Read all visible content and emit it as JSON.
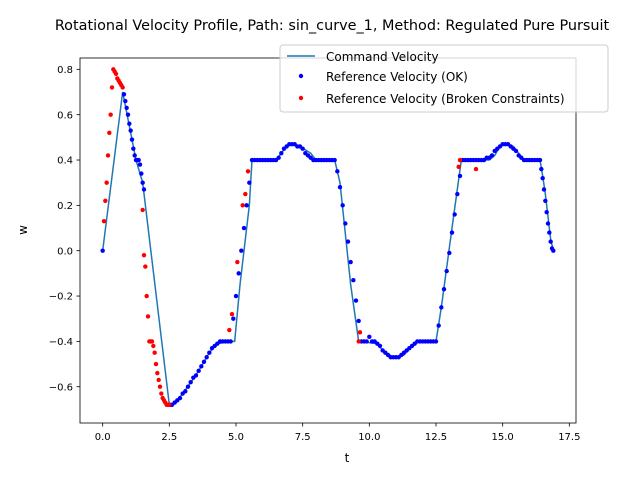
{
  "chart_data": {
    "type": "line",
    "title": "Rotational Velocity Profile, Path: sin_curve_1, Method: Regulated Pure Pursuit",
    "xlabel": "t",
    "ylabel": "w",
    "xlim": [
      -0.85,
      17.75
    ],
    "ylim": [
      -0.76,
      0.85
    ],
    "xticks": [
      0.0,
      2.5,
      5.0,
      7.5,
      10.0,
      12.5,
      15.0,
      17.5
    ],
    "xtick_labels": [
      "0.0",
      "2.5",
      "5.0",
      "7.5",
      "10.0",
      "12.5",
      "15.0",
      "17.5"
    ],
    "yticks": [
      -0.6,
      -0.4,
      -0.2,
      0.0,
      0.2,
      0.4,
      0.6,
      0.8
    ],
    "ytick_labels": [
      "−0.6",
      "−0.4",
      "−0.2",
      "0.0",
      "0.2",
      "0.4",
      "0.6",
      "0.8"
    ],
    "grid": false,
    "legend_position": "top-right",
    "series": [
      {
        "name": "Command Velocity",
        "kind": "line",
        "color": "#1f77b4",
        "x": [
          0.0,
          0.75,
          1.0,
          1.25,
          1.5,
          2.5,
          2.75,
          3.0,
          3.5,
          4.0,
          4.3,
          4.8,
          4.95,
          5.15,
          5.5,
          5.6,
          6.0,
          6.5,
          6.7,
          6.9,
          7.1,
          7.4,
          7.8,
          8.0,
          8.7,
          8.9,
          9.3,
          9.6,
          10.3,
          10.5,
          10.9,
          11.1,
          11.3,
          11.5,
          11.8,
          12.5,
          12.7,
          13.1,
          13.45,
          14.0,
          14.5,
          14.7,
          14.9,
          15.1,
          15.4,
          15.6,
          15.8,
          16.4,
          16.5,
          16.6,
          16.7,
          16.8,
          16.9
        ],
        "y": [
          0.0,
          0.7,
          0.55,
          0.4,
          0.3,
          -0.68,
          -0.67,
          -0.63,
          -0.55,
          -0.45,
          -0.41,
          -0.4,
          -0.4,
          -0.15,
          0.2,
          0.4,
          0.4,
          0.4,
          0.43,
          0.46,
          0.47,
          0.46,
          0.43,
          0.4,
          0.4,
          0.3,
          -0.15,
          -0.4,
          -0.41,
          -0.44,
          -0.47,
          -0.47,
          -0.46,
          -0.43,
          -0.4,
          -0.4,
          -0.25,
          0.1,
          0.4,
          0.4,
          0.4,
          0.42,
          0.46,
          0.47,
          0.46,
          0.43,
          0.4,
          0.4,
          0.33,
          0.25,
          0.15,
          0.05,
          0.0
        ]
      },
      {
        "name": "Reference Velocity (OK)",
        "kind": "scatter",
        "color": "#0000ff",
        "x": [
          0.0,
          0.8,
          0.85,
          0.9,
          0.95,
          1.0,
          1.05,
          1.1,
          1.15,
          1.2,
          1.25,
          1.3,
          1.35,
          1.4,
          1.45,
          1.5,
          1.55,
          2.55,
          2.6,
          2.7,
          2.8,
          2.9,
          3.0,
          3.1,
          3.2,
          3.3,
          3.4,
          3.5,
          3.6,
          3.7,
          3.8,
          3.9,
          4.0,
          4.1,
          4.2,
          4.3,
          4.4,
          4.5,
          4.6,
          4.7,
          4.8,
          4.9,
          5.0,
          5.1,
          5.2,
          5.3,
          5.4,
          5.5,
          5.6,
          5.7,
          5.8,
          5.9,
          6.0,
          6.1,
          6.2,
          6.3,
          6.4,
          6.5,
          6.6,
          6.7,
          6.8,
          6.9,
          7.0,
          7.1,
          7.2,
          7.3,
          7.4,
          7.5,
          7.6,
          7.7,
          7.8,
          7.9,
          8.0,
          8.1,
          8.2,
          8.3,
          8.4,
          8.5,
          8.6,
          8.7,
          8.8,
          8.9,
          9.0,
          9.1,
          9.2,
          9.3,
          9.4,
          9.5,
          9.6,
          9.7,
          9.8,
          9.9,
          10.0,
          10.1,
          10.2,
          10.3,
          10.4,
          10.5,
          10.6,
          10.7,
          10.8,
          10.9,
          11.0,
          11.1,
          11.2,
          11.3,
          11.4,
          11.5,
          11.6,
          11.7,
          11.8,
          11.9,
          12.0,
          12.1,
          12.2,
          12.3,
          12.4,
          12.5,
          12.6,
          12.7,
          12.8,
          12.9,
          13.0,
          13.1,
          13.2,
          13.3,
          13.4,
          13.5,
          13.6,
          13.7,
          13.8,
          13.9,
          14.0,
          14.1,
          14.2,
          14.3,
          14.4,
          14.5,
          14.6,
          14.7,
          14.8,
          14.9,
          15.0,
          15.1,
          15.2,
          15.3,
          15.4,
          15.5,
          15.6,
          15.7,
          15.8,
          15.9,
          16.0,
          16.1,
          16.2,
          16.3,
          16.4,
          16.45,
          16.5,
          16.55,
          16.6,
          16.65,
          16.7,
          16.75,
          16.8,
          16.85,
          16.9
        ],
        "y": [
          0.0,
          0.69,
          0.66,
          0.63,
          0.6,
          0.56,
          0.53,
          0.49,
          0.45,
          0.42,
          0.4,
          0.4,
          0.4,
          0.38,
          0.34,
          0.3,
          0.27,
          -0.68,
          -0.68,
          -0.67,
          -0.66,
          -0.65,
          -0.63,
          -0.62,
          -0.6,
          -0.58,
          -0.56,
          -0.55,
          -0.53,
          -0.51,
          -0.49,
          -0.47,
          -0.45,
          -0.43,
          -0.42,
          -0.41,
          -0.4,
          -0.4,
          -0.4,
          -0.4,
          -0.4,
          -0.3,
          -0.2,
          -0.1,
          0.0,
          0.1,
          0.2,
          0.3,
          0.4,
          0.4,
          0.4,
          0.4,
          0.4,
          0.4,
          0.4,
          0.4,
          0.4,
          0.4,
          0.41,
          0.43,
          0.45,
          0.46,
          0.47,
          0.47,
          0.47,
          0.46,
          0.46,
          0.45,
          0.43,
          0.42,
          0.41,
          0.4,
          0.4,
          0.4,
          0.4,
          0.4,
          0.4,
          0.4,
          0.4,
          0.4,
          0.35,
          0.28,
          0.2,
          0.12,
          0.04,
          -0.05,
          -0.13,
          -0.22,
          -0.31,
          -0.4,
          -0.4,
          -0.4,
          -0.38,
          -0.4,
          -0.4,
          -0.41,
          -0.42,
          -0.44,
          -0.45,
          -0.46,
          -0.47,
          -0.47,
          -0.47,
          -0.47,
          -0.46,
          -0.45,
          -0.44,
          -0.43,
          -0.42,
          -0.41,
          -0.4,
          -0.4,
          -0.4,
          -0.4,
          -0.4,
          -0.4,
          -0.4,
          -0.4,
          -0.33,
          -0.25,
          -0.17,
          -0.09,
          -0.01,
          0.08,
          0.16,
          0.25,
          0.33,
          0.4,
          0.4,
          0.4,
          0.4,
          0.4,
          0.4,
          0.4,
          0.4,
          0.4,
          0.41,
          0.41,
          0.42,
          0.44,
          0.45,
          0.46,
          0.47,
          0.47,
          0.47,
          0.46,
          0.45,
          0.44,
          0.42,
          0.41,
          0.4,
          0.4,
          0.4,
          0.4,
          0.4,
          0.4,
          0.4,
          0.36,
          0.32,
          0.27,
          0.22,
          0.17,
          0.12,
          0.08,
          0.04,
          0.01,
          0.0
        ]
      },
      {
        "name": "Reference Velocity (Broken Constraints)",
        "kind": "scatter",
        "color": "#ff0000",
        "x": [
          0.05,
          0.1,
          0.15,
          0.2,
          0.25,
          0.3,
          0.35,
          0.4,
          0.45,
          0.5,
          0.55,
          0.6,
          0.65,
          0.7,
          0.75,
          1.5,
          1.55,
          1.6,
          1.65,
          1.7,
          1.75,
          1.8,
          1.85,
          1.9,
          1.95,
          2.0,
          2.05,
          2.1,
          2.15,
          2.2,
          2.25,
          2.3,
          2.35,
          2.4,
          2.45,
          2.5,
          4.75,
          4.85,
          5.05,
          5.25,
          5.35,
          5.45,
          9.6,
          9.65,
          13.35,
          13.4,
          14.0
        ],
        "y": [
          0.13,
          0.22,
          0.3,
          0.42,
          0.52,
          0.6,
          0.72,
          0.8,
          0.79,
          0.78,
          0.76,
          0.75,
          0.74,
          0.73,
          0.72,
          0.18,
          -0.02,
          -0.07,
          -0.2,
          -0.29,
          -0.4,
          -0.4,
          -0.4,
          -0.42,
          -0.45,
          -0.5,
          -0.54,
          -0.57,
          -0.6,
          -0.63,
          -0.65,
          -0.66,
          -0.67,
          -0.68,
          -0.68,
          -0.68,
          -0.35,
          -0.28,
          -0.05,
          0.2,
          0.25,
          0.35,
          -0.4,
          -0.36,
          0.37,
          0.4,
          0.36
        ]
      }
    ]
  }
}
